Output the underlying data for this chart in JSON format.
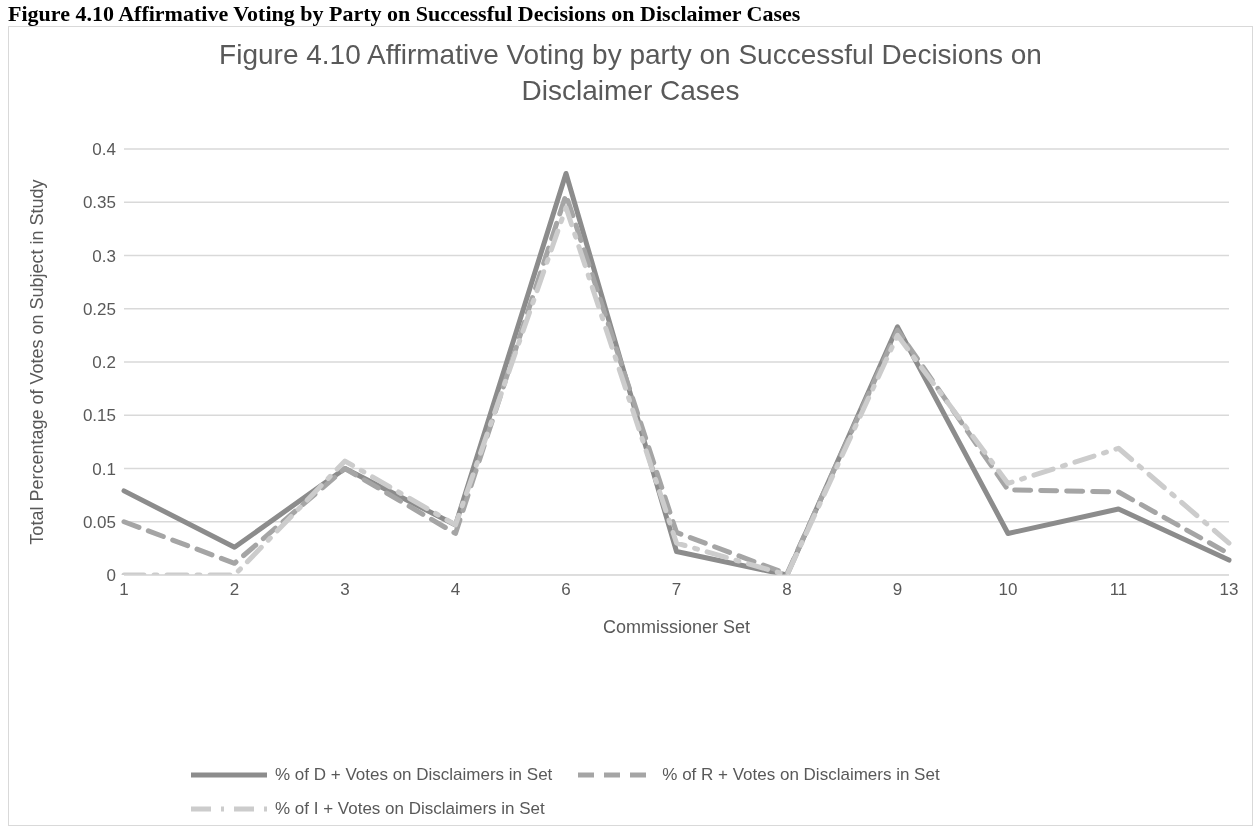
{
  "chart_data": {
    "type": "line",
    "title": "Figure 4.10 Affirmative Voting by party on Successful Decisions on Disclaimer Cases",
    "annotations": [
      "Figure 4.10 Affirmative Voting by Party on Successful Decisions on Disclaimer Cases"
    ],
    "xlabel": "Commissioner Set",
    "ylabel": "Total Percentage of Votes on Subject in Study",
    "categories": [
      "1",
      "2",
      "3",
      "4",
      "6",
      "7",
      "8",
      "9",
      "10",
      "11",
      "13"
    ],
    "series": [
      {
        "name": "% of D + Votes on Disclaimers in Set",
        "color": "#8c8c8c",
        "line_style": "solid",
        "values": [
          0.079,
          0.026,
          0.1,
          0.047,
          0.377,
          0.022,
          0,
          0.233,
          0.039,
          0.062,
          0.014
        ]
      },
      {
        "name": "% of R + Votes on Disclaimers in Set",
        "color": "#a5a5a5",
        "line_style": "dashed",
        "values": [
          0.05,
          0.011,
          0.1,
          0.039,
          0.357,
          0.04,
          0.001,
          0.23,
          0.08,
          0.078,
          0.02
        ]
      },
      {
        "name": "% of I + Votes on Disclaimers in Set",
        "color": "#cccccc",
        "line_style": "dotted",
        "values": [
          0,
          0,
          0.107,
          0.047,
          0.345,
          0.03,
          0,
          0.225,
          0.086,
          0.119,
          0.03
        ]
      }
    ],
    "ylim": [
      0,
      0.4
    ],
    "yticks": [
      0,
      0.05,
      0.1,
      0.15,
      0.2,
      0.25,
      0.3,
      0.35,
      0.4
    ],
    "grid": "y",
    "legend": "bottom",
    "marker": "none"
  }
}
